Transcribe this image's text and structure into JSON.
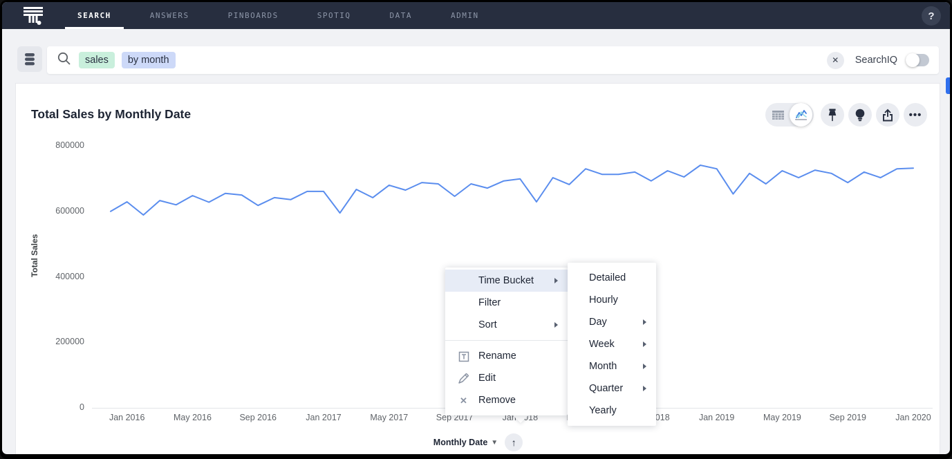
{
  "nav": {
    "tabs": [
      {
        "label": "SEARCH",
        "active": true
      },
      {
        "label": "ANSWERS",
        "active": false
      },
      {
        "label": "PINBOARDS",
        "active": false
      },
      {
        "label": "SPOTIQ",
        "active": false
      },
      {
        "label": "DATA",
        "active": false
      },
      {
        "label": "ADMIN",
        "active": false
      }
    ],
    "help_label": "?"
  },
  "search": {
    "tokens": [
      {
        "text": "sales",
        "type": "measure"
      },
      {
        "text": "by month",
        "type": "attribute"
      }
    ],
    "clear_glyph": "✕",
    "searchiq_label": "SearchIQ",
    "searchiq_on": false
  },
  "answer": {
    "title": "Total Sales by Monthly Date",
    "toolbar_icons": [
      "table-view-icon",
      "chart-view-icon",
      "pin-icon",
      "spotiq-bulb-icon",
      "share-icon",
      "more-actions-icon"
    ],
    "more_glyph": "•••"
  },
  "chart_data": {
    "type": "line",
    "title": "Total Sales by Monthly Date",
    "xlabel": "Monthly Date",
    "ylabel": "Total Sales",
    "legend": "none",
    "grid": false,
    "line_color": "#5a8dee",
    "ylim": [
      0,
      800000
    ],
    "yticks": [
      0,
      200000,
      400000,
      600000,
      800000
    ],
    "x_labels": [
      "Dec 2015",
      "Jan 2016",
      "Feb 2016",
      "Mar 2016",
      "Apr 2016",
      "May 2016",
      "Jun 2016",
      "Jul 2016",
      "Aug 2016",
      "Sep 2016",
      "Oct 2016",
      "Nov 2016",
      "Dec 2016",
      "Jan 2017",
      "Feb 2017",
      "Mar 2017",
      "Apr 2017",
      "May 2017",
      "Jun 2017",
      "Jul 2017",
      "Aug 2017",
      "Sep 2017",
      "Oct 2017",
      "Nov 2017",
      "Dec 2017",
      "Jan 2018",
      "Feb 2018",
      "Mar 2018",
      "Apr 2018",
      "May 2018",
      "Jun 2018",
      "Jul 2018",
      "Aug 2018",
      "Sep 2018",
      "Oct 2018",
      "Nov 2018",
      "Dec 2018",
      "Jan 2019",
      "Feb 2019",
      "Mar 2019",
      "Apr 2019",
      "May 2019",
      "Jun 2019",
      "Jul 2019",
      "Aug 2019",
      "Sep 2019",
      "Oct 2019",
      "Nov 2019",
      "Dec 2019",
      "Jan 2020"
    ],
    "values": [
      600000,
      629000,
      589000,
      633000,
      620000,
      648000,
      628000,
      655000,
      650000,
      618000,
      642000,
      636000,
      661000,
      661000,
      595000,
      667000,
      642000,
      680000,
      665000,
      688000,
      684000,
      646000,
      684000,
      671000,
      693000,
      699000,
      629000,
      703000,
      682000,
      730000,
      713000,
      713000,
      720000,
      693000,
      724000,
      705000,
      741000,
      730000,
      653000,
      716000,
      684000,
      724000,
      703000,
      726000,
      716000,
      688000,
      720000,
      703000,
      730000,
      732000
    ],
    "xtick_indices": [
      1,
      5,
      9,
      13,
      17,
      21,
      25,
      29,
      33,
      37,
      41,
      45,
      49
    ]
  },
  "axis_control": {
    "label": "Monthly Date",
    "sort_glyph": "↑"
  },
  "context_menu": {
    "items": [
      {
        "label": "Time Bucket",
        "submenu": true,
        "highlighted": true
      },
      {
        "label": "Filter",
        "submenu": false,
        "highlighted": false
      },
      {
        "label": "Sort",
        "submenu": true,
        "highlighted": false
      },
      {
        "label": "Rename",
        "icon": "rename-icon"
      },
      {
        "label": "Edit",
        "icon": "edit-icon"
      },
      {
        "label": "Remove",
        "icon": "remove-icon",
        "glyph": "✕"
      }
    ],
    "submenu_items": [
      {
        "label": "Detailed",
        "submenu": false
      },
      {
        "label": "Hourly",
        "submenu": false
      },
      {
        "label": "Day",
        "submenu": true
      },
      {
        "label": "Week",
        "submenu": true
      },
      {
        "label": "Month",
        "submenu": true
      },
      {
        "label": "Quarter",
        "submenu": true
      },
      {
        "label": "Yearly",
        "submenu": false
      }
    ]
  },
  "colors": {
    "nav_bg": "#272e3f",
    "page_bg": "#f1f2f5",
    "accent_blue": "#2f6fed",
    "line_blue": "#5a8dee",
    "token_measure_bg": "#c9efdc",
    "token_attribute_bg": "#cdd9f8",
    "menu_highlight_bg": "#e7ecf6",
    "text_dark": "#1d2433",
    "text_muted": "#5f6368"
  }
}
